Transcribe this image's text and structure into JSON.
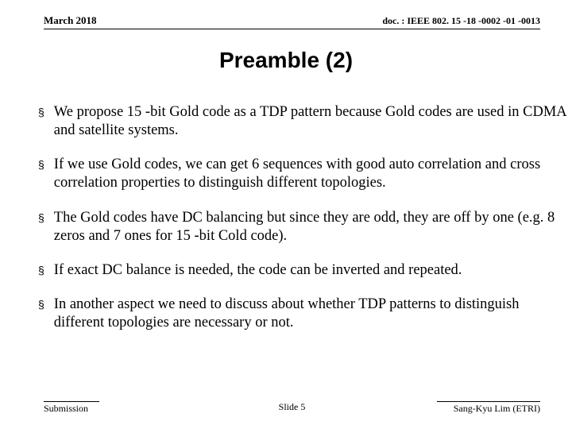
{
  "header": {
    "date": "March 2018",
    "docref": "doc. : IEEE 802. 15 -18 -0002 -01 -0013"
  },
  "title": "Preamble (2)",
  "bullets": [
    "We propose 15 -bit Gold code as a TDP pattern because Gold codes are used in CDMA and satellite systems.",
    "If we use Gold codes, we can get 6 sequences with good auto correlation and cross correlation properties to distinguish different topologies.",
    "The Gold codes have DC balancing but since they are odd, they are off by one (e.g. 8 zeros and 7 ones for 15 -bit Cold code).",
    "If exact DC balance is needed, the code can be inverted and repeated.",
    "In another aspect we need to discuss about whether TDP patterns to distinguish different topologies are necessary or not."
  ],
  "footer": {
    "left": "Submission",
    "center": "Slide 5",
    "right": "Sang-Kyu Lim (ETRI)"
  },
  "style": {
    "background_color": "#ffffff",
    "text_color": "#000000",
    "title_fontsize": 28,
    "body_fontsize": 18.5,
    "header_fontsize": 13,
    "footer_fontsize": 12,
    "bullet_marker": "§"
  }
}
